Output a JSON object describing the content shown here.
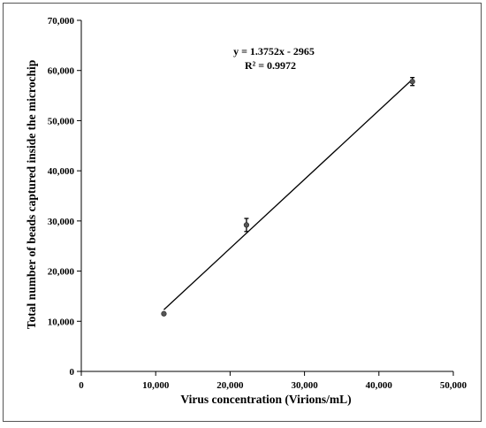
{
  "chart_data": {
    "type": "scatter",
    "xlabel": "Virus concentration (Virions/mL)",
    "ylabel": "Total number of beads captured inside the microchip",
    "xlim": [
      0,
      50000
    ],
    "ylim": [
      0,
      70000
    ],
    "x_ticks": [
      0,
      10000,
      20000,
      30000,
      40000,
      50000
    ],
    "x_tick_labels": [
      "0",
      "10,000",
      "20,000",
      "30,000",
      "40,000",
      "50,000"
    ],
    "y_ticks": [
      0,
      10000,
      20000,
      30000,
      40000,
      50000,
      60000,
      70000
    ],
    "y_tick_labels": [
      "0",
      "10,000",
      "20,000",
      "30,000",
      "40,000",
      "50,000",
      "60,000",
      "70,000"
    ],
    "grid": false,
    "series": [
      {
        "points": [
          {
            "x": 11100,
            "y": 11500,
            "err": 200
          },
          {
            "x": 22200,
            "y": 29200,
            "err": 1300
          },
          {
            "x": 44500,
            "y": 57800,
            "err": 800
          }
        ]
      }
    ],
    "trendline": {
      "slope": 1.3752,
      "intercept": -2965,
      "x_range": [
        11100,
        44500
      ],
      "equation": "y = 1.3752x - 2965",
      "r_squared": "R² = 0.9972"
    },
    "colors": {
      "marker": "#555555",
      "line": "#000000",
      "axis": "#000000"
    }
  }
}
